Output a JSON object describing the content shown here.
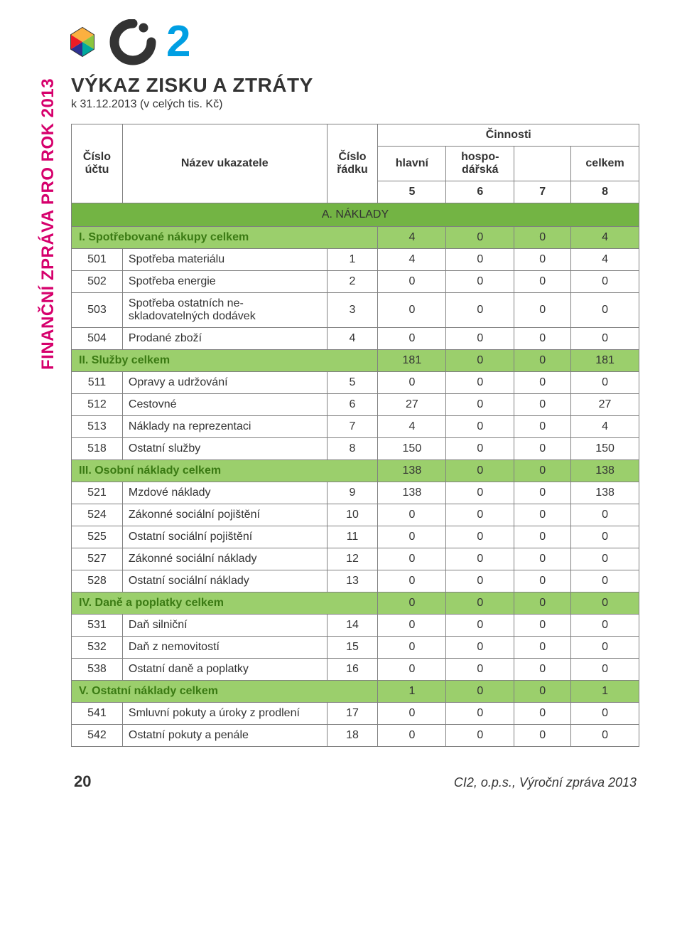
{
  "side_label": "FINANČNÍ ZPRÁVA PRO ROK 2013",
  "logo": {
    "g_color": "#333333",
    "two_color": "#009fe3"
  },
  "title": "VÝKAZ ZISKU A ZTRÁTY",
  "subtitle": "k 31.12.2013 (v celých tis. Kč)",
  "colors": {
    "section_header_bg": "#73b444",
    "summary_row_bg": "#9bcf6c",
    "summary_name_color": "#3a7a13",
    "border_color": "#808080",
    "text_color": "#333333",
    "side_label_color": "#d6006c"
  },
  "table": {
    "header": {
      "cislo_uctu": "Číslo účtu",
      "nazev": "Název ukazatele",
      "cislo_radku": "Číslo řádku",
      "cinnosti": "Činnosti",
      "hlavni": "hlavní",
      "hospo": "hospo-dářská",
      "celkem": "celkem",
      "col5": "5",
      "col6": "6",
      "col7": "7",
      "col8": "8"
    },
    "section_header": "A. NÁKLADY",
    "rows": [
      {
        "type": "summary",
        "cislo": "",
        "name": "I. Spotřebované nákupy celkem",
        "radek": "",
        "c5": "4",
        "c6": "0",
        "c7": "0",
        "c8": "4"
      },
      {
        "type": "data",
        "cislo": "501",
        "name": "Spotřeba materiálu",
        "radek": "1",
        "c5": "4",
        "c6": "0",
        "c7": "0",
        "c8": "4"
      },
      {
        "type": "data",
        "cislo": "502",
        "name": "Spotřeba energie",
        "radek": "2",
        "c5": "0",
        "c6": "0",
        "c7": "0",
        "c8": "0"
      },
      {
        "type": "data",
        "cislo": "503",
        "name": "Spotřeba ostatních ne-skladovatelných dodávek",
        "radek": "3",
        "c5": "0",
        "c6": "0",
        "c7": "0",
        "c8": "0"
      },
      {
        "type": "data",
        "cislo": "504",
        "name": "Prodané zboží",
        "radek": "4",
        "c5": "0",
        "c6": "0",
        "c7": "0",
        "c8": "0"
      },
      {
        "type": "summary",
        "cislo": "",
        "name": "II. Služby celkem",
        "radek": "",
        "c5": "181",
        "c6": "0",
        "c7": "0",
        "c8": "181"
      },
      {
        "type": "data",
        "cislo": "511",
        "name": "Opravy a udržování",
        "radek": "5",
        "c5": "0",
        "c6": "0",
        "c7": "0",
        "c8": "0"
      },
      {
        "type": "data",
        "cislo": "512",
        "name": "Cestovné",
        "radek": "6",
        "c5": "27",
        "c6": "0",
        "c7": "0",
        "c8": "27"
      },
      {
        "type": "data",
        "cislo": "513",
        "name": "Náklady na reprezentaci",
        "radek": "7",
        "c5": "4",
        "c6": "0",
        "c7": "0",
        "c8": "4"
      },
      {
        "type": "data",
        "cislo": "518",
        "name": "Ostatní služby",
        "radek": "8",
        "c5": "150",
        "c6": "0",
        "c7": "0",
        "c8": "150"
      },
      {
        "type": "summary",
        "cislo": "",
        "name": "III. Osobní náklady celkem",
        "radek": "",
        "c5": "138",
        "c6": "0",
        "c7": "0",
        "c8": "138"
      },
      {
        "type": "data",
        "cislo": "521",
        "name": "Mzdové náklady",
        "radek": "9",
        "c5": "138",
        "c6": "0",
        "c7": "0",
        "c8": "138"
      },
      {
        "type": "data",
        "cislo": "524",
        "name": "Zákonné sociální pojištění",
        "radek": "10",
        "c5": "0",
        "c6": "0",
        "c7": "0",
        "c8": "0"
      },
      {
        "type": "data",
        "cislo": "525",
        "name": "Ostatní sociální pojištění",
        "radek": "11",
        "c5": "0",
        "c6": "0",
        "c7": "0",
        "c8": "0"
      },
      {
        "type": "data",
        "cislo": "527",
        "name": "Zákonné sociální náklady",
        "radek": "12",
        "c5": "0",
        "c6": "0",
        "c7": "0",
        "c8": "0"
      },
      {
        "type": "data",
        "cislo": "528",
        "name": "Ostatní sociální náklady",
        "radek": "13",
        "c5": "0",
        "c6": "0",
        "c7": "0",
        "c8": "0"
      },
      {
        "type": "summary",
        "cislo": "",
        "name": "IV. Daně a poplatky celkem",
        "radek": "",
        "c5": "0",
        "c6": "0",
        "c7": "0",
        "c8": "0"
      },
      {
        "type": "data",
        "cislo": "531",
        "name": "Daň silniční",
        "radek": "14",
        "c5": "0",
        "c6": "0",
        "c7": "0",
        "c8": "0"
      },
      {
        "type": "data",
        "cislo": "532",
        "name": "Daň z nemovitostí",
        "radek": "15",
        "c5": "0",
        "c6": "0",
        "c7": "0",
        "c8": "0"
      },
      {
        "type": "data",
        "cislo": "538",
        "name": "Ostatní daně a poplatky",
        "radek": "16",
        "c5": "0",
        "c6": "0",
        "c7": "0",
        "c8": "0"
      },
      {
        "type": "summary",
        "cislo": "",
        "name": "V. Ostatní náklady celkem",
        "radek": "",
        "c5": "1",
        "c6": "0",
        "c7": "0",
        "c8": "1"
      },
      {
        "type": "data",
        "cislo": "541",
        "name": "Smluvní pokuty a úroky z prodlení",
        "radek": "17",
        "c5": "0",
        "c6": "0",
        "c7": "0",
        "c8": "0"
      },
      {
        "type": "data",
        "cislo": "542",
        "name": "Ostatní pokuty a penále",
        "radek": "18",
        "c5": "0",
        "c6": "0",
        "c7": "0",
        "c8": "0"
      }
    ]
  },
  "footer": {
    "page_number": "20",
    "text": "CI2, o.p.s., Výroční zpráva 2013"
  }
}
